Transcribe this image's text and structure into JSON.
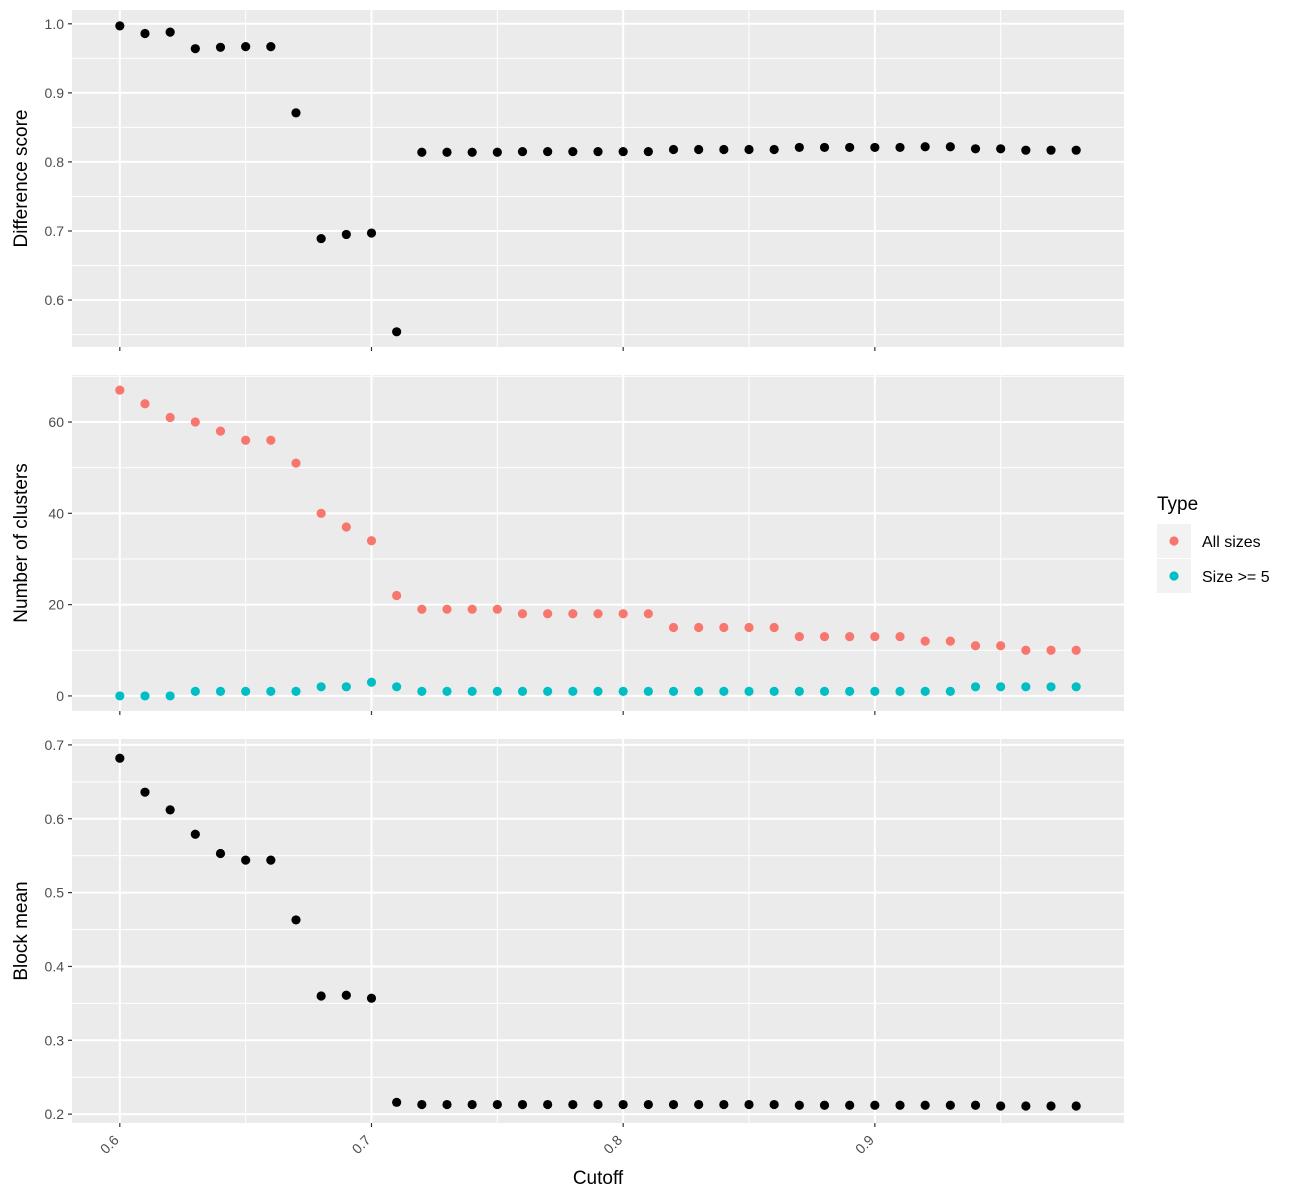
{
  "chart_data": [
    {
      "type": "scatter",
      "ylabel": "Difference score",
      "xlim": [
        0.581,
        0.999
      ],
      "ylim": [
        0.532,
        1.02
      ],
      "yticks": [
        0.6,
        0.7,
        0.8,
        0.9,
        1.0
      ],
      "yticklabels": [
        "0.6",
        "0.7",
        "0.8",
        "0.9",
        "1.0"
      ],
      "series": [
        {
          "color": "#000000",
          "x": [
            0.6,
            0.61,
            0.62,
            0.63,
            0.64,
            0.65,
            0.66,
            0.67,
            0.68,
            0.69,
            0.7,
            0.71,
            0.72,
            0.73,
            0.74,
            0.75,
            0.76,
            0.77,
            0.78,
            0.79,
            0.8,
            0.81,
            0.82,
            0.83,
            0.84,
            0.85,
            0.86,
            0.87,
            0.88,
            0.89,
            0.9,
            0.91,
            0.92,
            0.93,
            0.94,
            0.95,
            0.96,
            0.97,
            0.98
          ],
          "y": [
            0.997,
            0.986,
            0.988,
            0.964,
            0.966,
            0.967,
            0.967,
            0.871,
            0.689,
            0.695,
            0.697,
            0.554,
            0.814,
            0.814,
            0.814,
            0.814,
            0.815,
            0.815,
            0.815,
            0.815,
            0.815,
            0.815,
            0.818,
            0.818,
            0.818,
            0.818,
            0.818,
            0.821,
            0.821,
            0.821,
            0.821,
            0.821,
            0.822,
            0.822,
            0.819,
            0.819,
            0.817,
            0.817,
            0.817
          ]
        }
      ]
    },
    {
      "type": "scatter",
      "ylabel": "Number of clusters",
      "xlim": [
        0.581,
        0.999
      ],
      "ylim": [
        -3.3,
        70.3
      ],
      "yticks": [
        0,
        20,
        40,
        60
      ],
      "yticklabels": [
        "0",
        "20",
        "40",
        "60"
      ],
      "legend": {
        "title": "Type",
        "position": "right"
      },
      "series": [
        {
          "name": "All sizes",
          "color": "#F8766D",
          "x": [
            0.6,
            0.61,
            0.62,
            0.63,
            0.64,
            0.65,
            0.66,
            0.67,
            0.68,
            0.69,
            0.7,
            0.71,
            0.72,
            0.73,
            0.74,
            0.75,
            0.76,
            0.77,
            0.78,
            0.79,
            0.8,
            0.81,
            0.82,
            0.83,
            0.84,
            0.85,
            0.86,
            0.87,
            0.88,
            0.89,
            0.9,
            0.91,
            0.92,
            0.93,
            0.94,
            0.95,
            0.96,
            0.97,
            0.98
          ],
          "y": [
            67,
            64,
            61,
            60,
            58,
            56,
            56,
            51,
            40,
            37,
            34,
            22,
            19,
            19,
            19,
            19,
            18,
            18,
            18,
            18,
            18,
            18,
            15,
            15,
            15,
            15,
            15,
            13,
            13,
            13,
            13,
            13,
            12,
            12,
            11,
            11,
            10,
            10,
            10
          ]
        },
        {
          "name": "Size >= 5",
          "color": "#00BFC4",
          "x": [
            0.6,
            0.61,
            0.62,
            0.63,
            0.64,
            0.65,
            0.66,
            0.67,
            0.68,
            0.69,
            0.7,
            0.71,
            0.72,
            0.73,
            0.74,
            0.75,
            0.76,
            0.77,
            0.78,
            0.79,
            0.8,
            0.81,
            0.82,
            0.83,
            0.84,
            0.85,
            0.86,
            0.87,
            0.88,
            0.89,
            0.9,
            0.91,
            0.92,
            0.93,
            0.94,
            0.95,
            0.96,
            0.97,
            0.98
          ],
          "y": [
            0,
            0,
            0,
            1,
            1,
            1,
            1,
            1,
            2,
            2,
            3,
            2,
            1,
            1,
            1,
            1,
            1,
            1,
            1,
            1,
            1,
            1,
            1,
            1,
            1,
            1,
            1,
            1,
            1,
            1,
            1,
            1,
            1,
            1,
            2,
            2,
            2,
            2,
            2
          ]
        }
      ]
    },
    {
      "type": "scatter",
      "ylabel": "Block mean",
      "xlabel": "Cutoff",
      "xlim": [
        0.581,
        0.999
      ],
      "ylim": [
        0.188,
        0.708
      ],
      "yticks": [
        0.2,
        0.3,
        0.4,
        0.5,
        0.6,
        0.7
      ],
      "yticklabels": [
        "0.2",
        "0.3",
        "0.4",
        "0.5",
        "0.6",
        "0.7"
      ],
      "xticks": [
        0.6,
        0.7,
        0.8,
        0.9
      ],
      "xticklabels": [
        "0.6",
        "0.7",
        "0.8",
        "0.9"
      ],
      "series": [
        {
          "color": "#000000",
          "x": [
            0.6,
            0.61,
            0.62,
            0.63,
            0.64,
            0.65,
            0.66,
            0.67,
            0.68,
            0.69,
            0.7,
            0.71,
            0.72,
            0.73,
            0.74,
            0.75,
            0.76,
            0.77,
            0.78,
            0.79,
            0.8,
            0.81,
            0.82,
            0.83,
            0.84,
            0.85,
            0.86,
            0.87,
            0.88,
            0.89,
            0.9,
            0.91,
            0.92,
            0.93,
            0.94,
            0.95,
            0.96,
            0.97,
            0.98
          ],
          "y": [
            0.682,
            0.636,
            0.612,
            0.579,
            0.553,
            0.544,
            0.544,
            0.463,
            0.36,
            0.361,
            0.357,
            0.216,
            0.213,
            0.213,
            0.213,
            0.213,
            0.213,
            0.213,
            0.213,
            0.213,
            0.213,
            0.213,
            0.213,
            0.213,
            0.213,
            0.213,
            0.213,
            0.212,
            0.212,
            0.212,
            0.212,
            0.212,
            0.212,
            0.212,
            0.212,
            0.211,
            0.211,
            0.211,
            0.211
          ]
        }
      ]
    }
  ]
}
